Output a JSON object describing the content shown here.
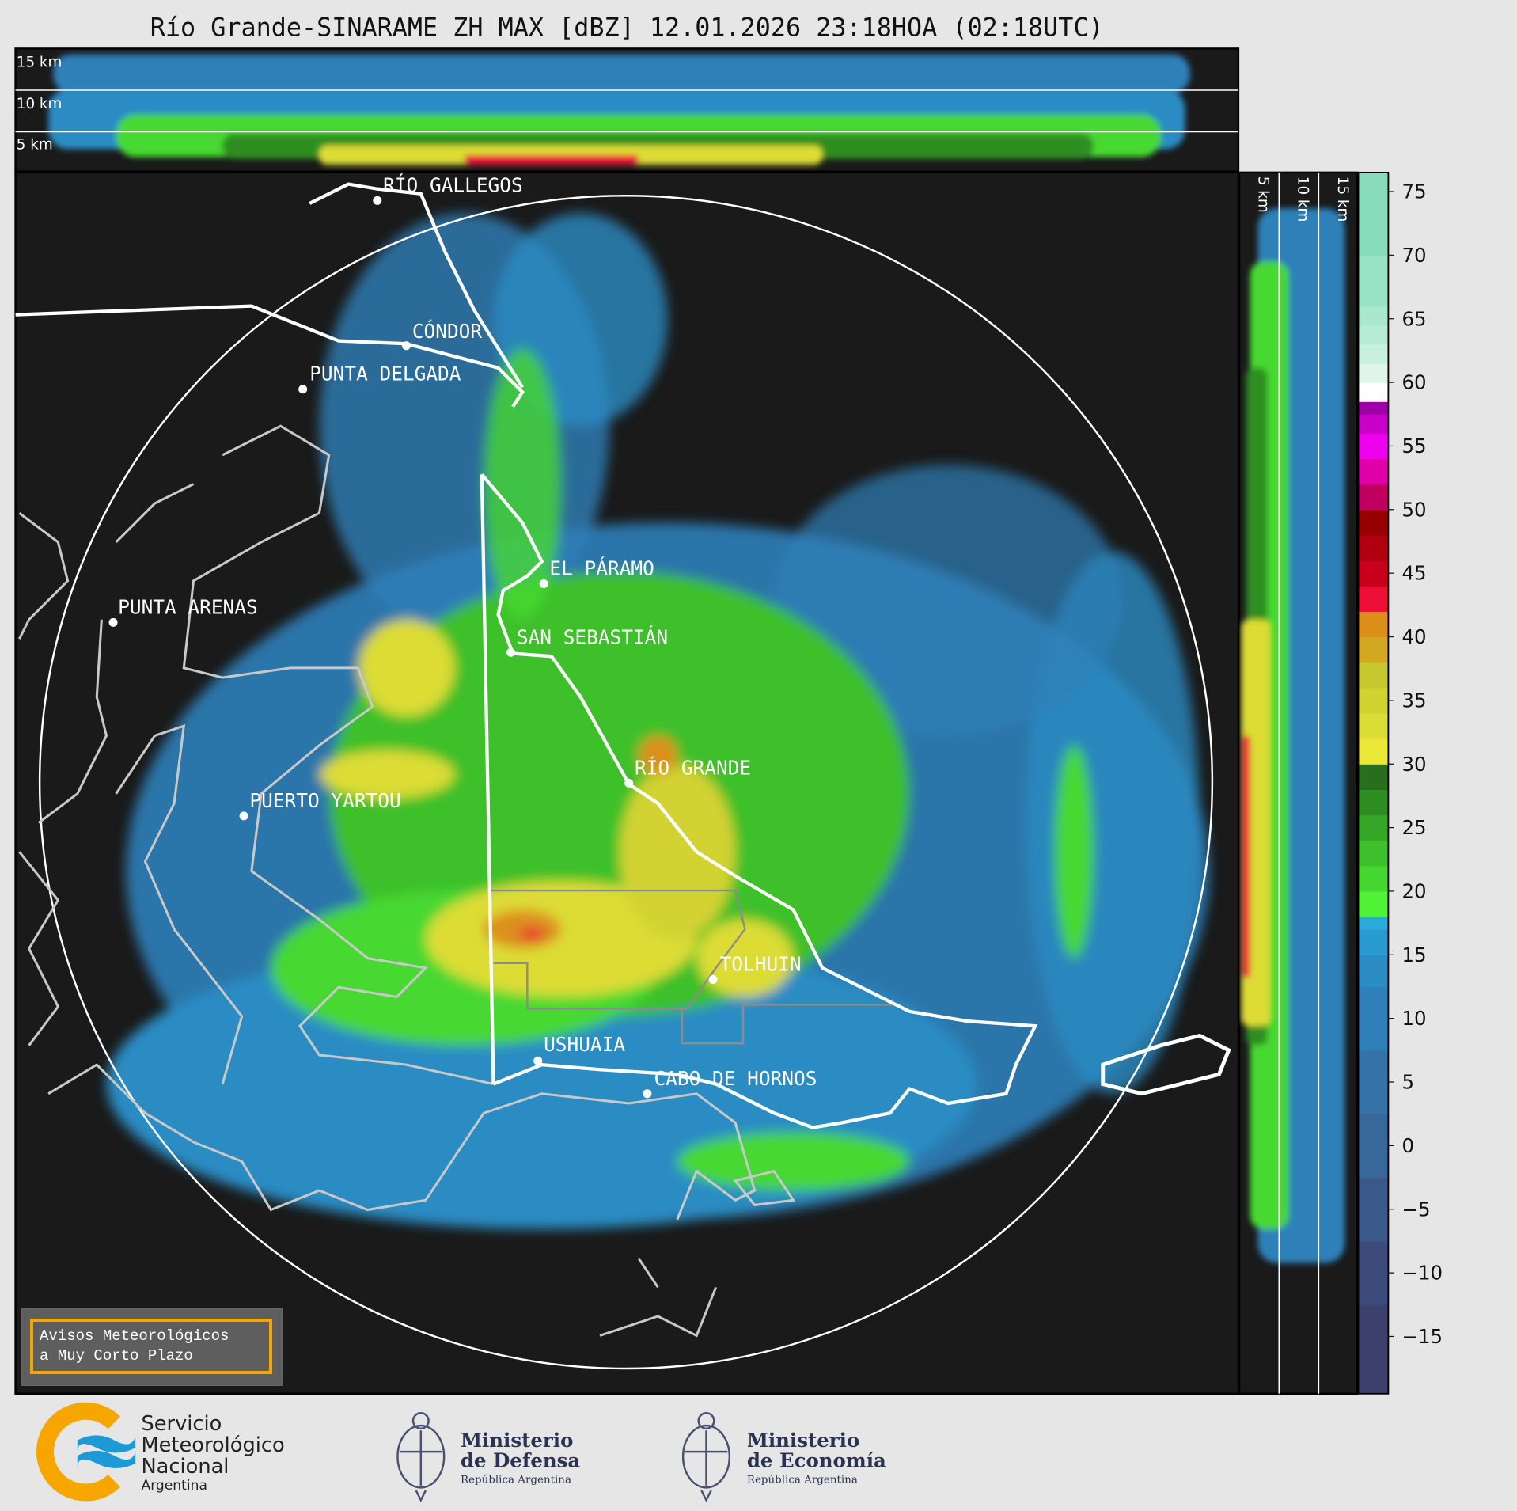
{
  "title": "Río Grande-SINARAME ZH MAX [dBZ] 12.01.2026 23:18HOA (02:18UTC)",
  "top_panel": {
    "height_labels": [
      "15 km",
      "10 km",
      "5 km"
    ]
  },
  "side_panel": {
    "height_labels": [
      "5 km",
      "10 km",
      "15 km"
    ]
  },
  "cities": [
    {
      "name": "RÍO GALLEGOS"
    },
    {
      "name": "CÓNDOR"
    },
    {
      "name": "PUNTA DELGADA"
    },
    {
      "name": "EL PÁRAMO"
    },
    {
      "name": "PUNTA ARENAS"
    },
    {
      "name": "SAN SEBASTIÁN"
    },
    {
      "name": "RÍO GRANDE"
    },
    {
      "name": "PUERTO YARTOU"
    },
    {
      "name": "TOLHUIN"
    },
    {
      "name": "USHUAIA"
    },
    {
      "name": "CABO DE HORNOS"
    }
  ],
  "colorbar": {
    "unit": "dBZ",
    "range": [
      -19.5,
      76.5
    ],
    "ticks": [
      75,
      70,
      65,
      60,
      55,
      50,
      45,
      40,
      35,
      30,
      25,
      20,
      15,
      10,
      5,
      0,
      -5,
      -10,
      -15
    ],
    "tick_labels": [
      "75",
      "70",
      "65",
      "60",
      "55",
      "50",
      "45",
      "40",
      "35",
      "30",
      "25",
      "20",
      "15",
      "10",
      "5",
      "0",
      "−5",
      "−10",
      "−15"
    ],
    "segments": [
      [
        -19.5,
        -12.5,
        "#3d3f6d"
      ],
      [
        -12.5,
        -7.5,
        "#3c4a7c"
      ],
      [
        -7.5,
        -2.5,
        "#3a598a"
      ],
      [
        -2.5,
        2.5,
        "#386799"
      ],
      [
        2.5,
        7.5,
        "#3572a6"
      ],
      [
        7.5,
        12.5,
        "#2f80b9"
      ],
      [
        12.5,
        15,
        "#2b8cc3"
      ],
      [
        15,
        17,
        "#2a9bd0"
      ],
      [
        17,
        18,
        "#29aadb"
      ],
      [
        18,
        20,
        "#50f236"
      ],
      [
        20,
        22,
        "#46d830"
      ],
      [
        22,
        24,
        "#3ec02c"
      ],
      [
        24,
        26,
        "#36a828"
      ],
      [
        26,
        28,
        "#2e8e22"
      ],
      [
        28,
        30,
        "#276f1c"
      ],
      [
        30,
        32,
        "#ebe838"
      ],
      [
        32,
        34,
        "#dcdc36"
      ],
      [
        34,
        36,
        "#d2d232"
      ],
      [
        36,
        38,
        "#c6c62e"
      ],
      [
        38,
        40,
        "#d2a820"
      ],
      [
        40,
        42,
        "#dc901a"
      ],
      [
        42,
        44,
        "#ec1038"
      ],
      [
        44,
        46,
        "#c8001c"
      ],
      [
        46,
        48,
        "#b00010"
      ],
      [
        48,
        50,
        "#960000"
      ],
      [
        50,
        52,
        "#c00060"
      ],
      [
        52,
        54,
        "#e000a8"
      ],
      [
        54,
        56,
        "#ee00ee"
      ],
      [
        56,
        57.5,
        "#c800c8"
      ],
      [
        57.5,
        58.5,
        "#a000a8"
      ],
      [
        58.5,
        60,
        "#ffffff"
      ],
      [
        60,
        61.5,
        "#dff5ec"
      ],
      [
        61.5,
        63,
        "#c8f0e0"
      ],
      [
        63,
        64.5,
        "#b6ecd6"
      ],
      [
        64.5,
        66,
        "#a8e8cc"
      ],
      [
        66,
        70,
        "#98e2c6"
      ],
      [
        70,
        76.5,
        "#88dcbe"
      ]
    ]
  },
  "warning_box": {
    "line1": "Avisos Meteorológicos",
    "line2": "a Muy Corto Plazo"
  },
  "footer": {
    "smn": {
      "l1": "Servicio",
      "l2": "Meteorológico",
      "l3": "Nacional",
      "l4": "Argentina"
    },
    "defensa": {
      "l1": "Ministerio",
      "l2": "de Defensa",
      "l3": "República Argentina"
    },
    "economia": {
      "l1": "Ministerio",
      "l2": "de Economía",
      "l3": "República Argentina"
    }
  },
  "colors": {
    "background": "#1a1a1a",
    "figure": "#e6e6e6",
    "smn_orange": "#f7a600",
    "smn_blue": "#1d9ad6",
    "ministry_navy": "#2b3353",
    "warning_border": "#f7a600"
  }
}
